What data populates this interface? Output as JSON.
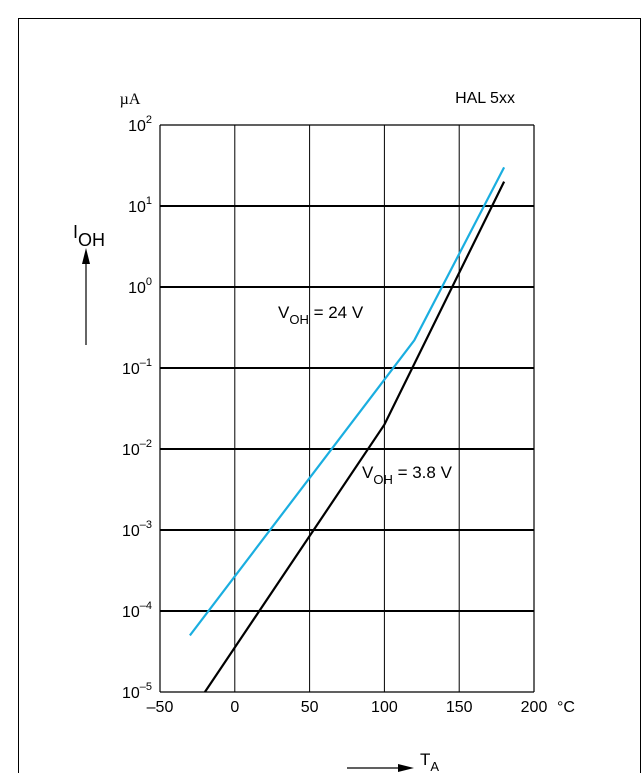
{
  "chart_data": {
    "type": "line",
    "title": "HAL 5xx",
    "y_unit": "µA",
    "y_label_main": "I",
    "y_label_sub": "OH",
    "x_label_main": "T",
    "x_label_sub": "A",
    "x_unit": "°C",
    "y_scale": "log",
    "xlim": [
      -50,
      200
    ],
    "ylim": [
      1e-05,
      100
    ],
    "grid": true,
    "x_ticks": [
      -50,
      0,
      50,
      100,
      150,
      200
    ],
    "x_tick_labels": [
      "–50",
      "0",
      "50",
      "100",
      "150",
      "200"
    ],
    "y_ticks": [
      1e-05,
      0.0001,
      0.001,
      0.01,
      0.1,
      1,
      10,
      100
    ],
    "y_tick_labels": [
      {
        "base": "10",
        "exp": "–5"
      },
      {
        "base": "10",
        "exp": "–4"
      },
      {
        "base": "10",
        "exp": "–3"
      },
      {
        "base": "10",
        "exp": "–2"
      },
      {
        "base": "10",
        "exp": "–1"
      },
      {
        "base": "10",
        "exp": "0"
      },
      {
        "base": "10",
        "exp": "1"
      },
      {
        "base": "10",
        "exp": "2"
      }
    ],
    "series": [
      {
        "label_main": "V",
        "label_sub": "OH",
        "label_rest": " = 24 V",
        "color": "#1aaee0",
        "x": [
          -30,
          120,
          180
        ],
        "y": [
          5e-05,
          0.22,
          30
        ]
      },
      {
        "label_main": "V",
        "label_sub": "OH",
        "label_rest": " = 3.8 V",
        "color": "#000000",
        "x": [
          -20,
          100,
          180
        ],
        "y": [
          1e-05,
          0.02,
          20
        ]
      }
    ]
  }
}
